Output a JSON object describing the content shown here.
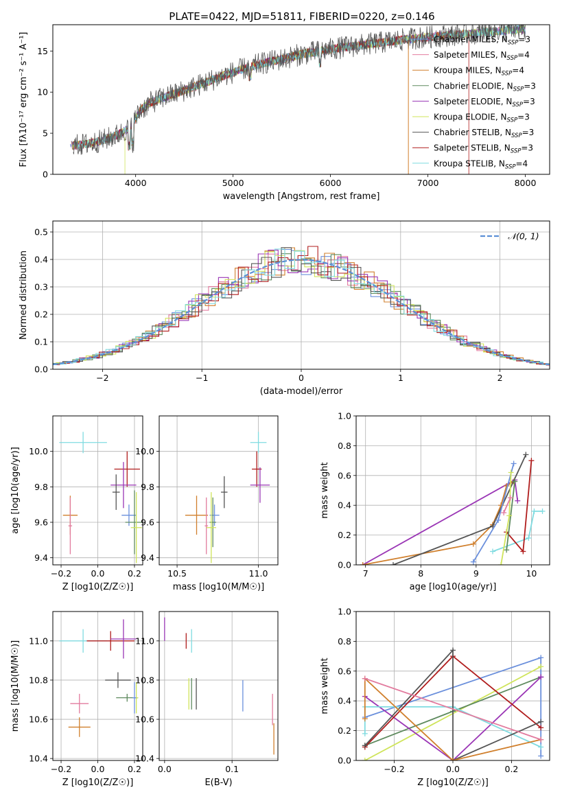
{
  "figure": {
    "title": "PLATE=0422, MJD=51811, FIBERID=0220, z=0.146"
  },
  "colors": {
    "Chabrier MILES": "#6a8fdc",
    "Salpeter MILES": "#e27b9e",
    "Kroupa MILES": "#d07f2c",
    "Chabrier ELODIE": "#5e8a5e",
    "Salpeter ELODIE": "#9a35b5",
    "Kroupa ELODIE": "#cfe45a",
    "Chabrier STELIB": "#545454",
    "Salpeter STELIB": "#b01c1c",
    "Kroupa STELIB": "#7fdbe0"
  },
  "chart_data": [
    {
      "id": "spectrum",
      "type": "line",
      "xlabel": "wavelength [Angstrom, rest frame]",
      "ylabel": "Flux [fλ10⁻¹⁷ erg cm⁻² s⁻¹ A⁻¹]",
      "xlim": [
        3150,
        8250
      ],
      "ylim": [
        0,
        18.2
      ],
      "xticks": [
        4000,
        5000,
        6000,
        7000,
        8000
      ],
      "yticks": [
        0,
        5,
        10,
        15
      ],
      "grid": false,
      "legend_position": "bottom-right",
      "series": [
        {
          "name": "Chabrier MILES, N_SSP=3",
          "color_key": "Chabrier MILES"
        },
        {
          "name": "Salpeter MILES, N_SSP=4",
          "color_key": "Salpeter MILES"
        },
        {
          "name": "Kroupa MILES, N_SSP=4",
          "color_key": "Kroupa MILES"
        },
        {
          "name": "Chabrier ELODIE, N_SSP=3",
          "color_key": "Chabrier ELODIE"
        },
        {
          "name": "Salpeter ELODIE, N_SSP=3",
          "color_key": "Salpeter ELODIE"
        },
        {
          "name": "Kroupa ELODIE, N_SSP=3",
          "color_key": "Kroupa ELODIE"
        },
        {
          "name": "Chabrier STELIB, N_SSP=3",
          "color_key": "Chabrier STELIB"
        },
        {
          "name": "Salpeter STELIB, N_SSP=3",
          "color_key": "Salpeter STELIB"
        },
        {
          "name": "Kroupa STELIB, N_SSP=4",
          "color_key": "Kroupa STELIB"
        }
      ],
      "continuum": {
        "x": [
          3350,
          3450,
          3550,
          3650,
          3750,
          3850,
          3950,
          4050,
          4150,
          4300,
          4500,
          4700,
          4900,
          5100,
          5300,
          5500,
          5700,
          5900,
          6100,
          6300,
          6500,
          6700,
          6900,
          7100,
          7300,
          7500,
          7700,
          7900,
          8000
        ],
        "y": [
          3.5,
          3.6,
          3.8,
          4.1,
          4.5,
          5.0,
          5.8,
          7.8,
          8.7,
          9.4,
          10.2,
          11.1,
          12.0,
          12.8,
          13.5,
          14.0,
          14.6,
          15.0,
          15.4,
          15.7,
          16.0,
          16.3,
          16.6,
          16.8,
          17.0,
          17.2,
          17.4,
          17.6,
          17.6
        ]
      }
    },
    {
      "id": "residuals",
      "type": "line",
      "xlabel": "(data-model)/error",
      "ylabel": "Normed distribution",
      "xlim": [
        -2.5,
        2.5
      ],
      "ylim": [
        0,
        0.54
      ],
      "xticks": [
        -2,
        -1,
        0,
        1,
        2
      ],
      "yticks": [
        0.0,
        0.1,
        0.2,
        0.3,
        0.4,
        0.5
      ],
      "grid": true,
      "legend": "𝒩(0, 1)",
      "legend_position": "top-right",
      "bin_width": 0.1,
      "bins_start": -2.5
    },
    {
      "id": "z-age",
      "type": "scatter",
      "xlabel": "Z [log10(Z/Z☉)]",
      "ylabel": "age  [log10(age/yr)]",
      "xlim": [
        -0.245,
        0.245
      ],
      "ylim": [
        9.36,
        10.2
      ],
      "xticks": [
        -0.2,
        0.0,
        0.2
      ],
      "yticks": [
        9.4,
        9.6,
        9.8,
        10.0
      ],
      "grid": true,
      "points": [
        {
          "key": "Kroupa STELIB",
          "x": -0.08,
          "y": 10.05,
          "xerr": 0.13,
          "yerr": 0.06
        },
        {
          "key": "Salpeter STELIB",
          "x": 0.16,
          "y": 9.9,
          "xerr": 0.07,
          "yerr": 0.1
        },
        {
          "key": "Salpeter ELODIE",
          "x": 0.14,
          "y": 9.81,
          "xerr": 0.07,
          "yerr": 0.13
        },
        {
          "key": "Chabrier STELIB",
          "x": 0.1,
          "y": 9.77,
          "xerr": 0.02,
          "yerr": 0.1
        },
        {
          "key": "Kroupa MILES",
          "x": -0.15,
          "y": 9.64,
          "xerr": 0.04,
          "yerr": 0.11
        },
        {
          "key": "Salpeter MILES",
          "x": -0.15,
          "y": 9.58,
          "xerr": 0.01,
          "yerr": 0.16
        },
        {
          "key": "Chabrier MILES",
          "x": 0.17,
          "y": 9.64,
          "xerr": 0.04,
          "yerr": 0.06
        },
        {
          "key": "Chabrier ELODIE",
          "x": 0.2,
          "y": 9.6,
          "xerr": 0.05,
          "yerr": 0.18
        },
        {
          "key": "Kroupa ELODIE",
          "x": 0.21,
          "y": 9.57,
          "xerr": 0.03,
          "yerr": 0.2
        }
      ]
    },
    {
      "id": "mass-age",
      "type": "scatter",
      "xlabel": "mass [log10(M/M☉)]",
      "ylabel": "",
      "xlim": [
        10.39,
        11.12
      ],
      "ylim": [
        9.36,
        10.2
      ],
      "xticks": [
        10.5,
        11.0
      ],
      "yticks": [
        9.4,
        9.6,
        9.8,
        10.0
      ],
      "grid": true,
      "points": [
        {
          "key": "Kroupa STELIB",
          "x": 11.0,
          "y": 10.05,
          "xerr": 0.05,
          "yerr": 0.06
        },
        {
          "key": "Salpeter STELIB",
          "x": 10.99,
          "y": 9.9,
          "xerr": 0.03,
          "yerr": 0.1
        },
        {
          "key": "Salpeter ELODIE",
          "x": 11.01,
          "y": 9.81,
          "xerr": 0.06,
          "yerr": 0.1
        },
        {
          "key": "Chabrier STELIB",
          "x": 10.79,
          "y": 9.77,
          "xerr": 0.02,
          "yerr": 0.09
        },
        {
          "key": "Kroupa MILES",
          "x": 10.62,
          "y": 9.64,
          "xerr": 0.07,
          "yerr": 0.11
        },
        {
          "key": "Salpeter MILES",
          "x": 10.68,
          "y": 9.58,
          "xerr": 0.01,
          "yerr": 0.16
        },
        {
          "key": "Chabrier MILES",
          "x": 10.73,
          "y": 9.64,
          "xerr": 0.03,
          "yerr": 0.06
        },
        {
          "key": "Chabrier ELODIE",
          "x": 10.72,
          "y": 9.6,
          "xerr": 0.02,
          "yerr": 0.14
        },
        {
          "key": "Kroupa ELODIE",
          "x": 10.71,
          "y": 9.57,
          "xerr": 0.03,
          "yerr": 0.2
        }
      ]
    },
    {
      "id": "age-weight",
      "type": "line",
      "xlabel": "age  [log10(age/yr)]",
      "ylabel": "mass weight",
      "xlim": [
        6.83,
        10.33
      ],
      "ylim": [
        0,
        1
      ],
      "xticks": [
        7,
        8,
        9,
        10
      ],
      "yticks": [
        0.0,
        0.2,
        0.4,
        0.6,
        0.8,
        1.0
      ],
      "grid": true,
      "series": [
        {
          "key": "Salpeter ELODIE",
          "x": [
            6.95,
            9.7,
            9.75
          ],
          "y": [
            0.0,
            0.57,
            0.43
          ]
        },
        {
          "key": "Kroupa MILES",
          "x": [
            6.95,
            8.95,
            9.3,
            9.45,
            9.55,
            9.68
          ],
          "y": [
            0.0,
            0.14,
            0.27,
            0.4,
            0.53,
            0.56
          ]
        },
        {
          "key": "Chabrier STELIB",
          "x": [
            7.5,
            9.3,
            9.9
          ],
          "y": [
            0.0,
            0.26,
            0.74
          ]
        },
        {
          "key": "Chabrier MILES",
          "x": [
            8.95,
            9.4,
            9.68
          ],
          "y": [
            0.02,
            0.3,
            0.68
          ]
        },
        {
          "key": "Kroupa STELIB",
          "x": [
            9.3,
            9.95,
            10.05,
            10.2
          ],
          "y": [
            0.09,
            0.18,
            0.36,
            0.36
          ]
        },
        {
          "key": "Salpeter STELIB",
          "x": [
            9.55,
            9.85,
            10.0
          ],
          "y": [
            0.22,
            0.09,
            0.7
          ]
        },
        {
          "key": "Chabrier ELODIE",
          "x": [
            9.55,
            9.7
          ],
          "y": [
            0.1,
            0.56
          ]
        },
        {
          "key": "Kroupa ELODIE",
          "x": [
            9.45,
            9.6,
            9.63
          ],
          "y": [
            0.0,
            0.33,
            0.62
          ]
        },
        {
          "key": "Salpeter MILES",
          "x": [
            9.5,
            9.62
          ],
          "y": [
            0.35,
            0.45
          ]
        }
      ]
    },
    {
      "id": "z-mass",
      "type": "scatter",
      "xlabel": "Z [log10(Z/Z☉)]",
      "ylabel": "mass [log10(M/M☉)]",
      "xlim": [
        -0.245,
        0.245
      ],
      "ylim": [
        10.39,
        11.15
      ],
      "xticks": [
        -0.2,
        0.0,
        0.2
      ],
      "yticks": [
        10.4,
        10.6,
        10.8,
        11.0
      ],
      "grid": true,
      "points": [
        {
          "key": "Kroupa STELIB",
          "x": -0.08,
          "y": 11.0,
          "xerr": 0.13,
          "yerr": 0.06
        },
        {
          "key": "Salpeter STELIB",
          "x": 0.07,
          "y": 11.0,
          "xerr": 0.13,
          "yerr": 0.05
        },
        {
          "key": "Salpeter ELODIE",
          "x": 0.14,
          "y": 11.01,
          "xerr": 0.07,
          "yerr": 0.1
        },
        {
          "key": "Chabrier STELIB",
          "x": 0.11,
          "y": 10.8,
          "xerr": 0.07,
          "yerr": 0.04
        },
        {
          "key": "Chabrier ELODIE",
          "x": 0.16,
          "y": 10.71,
          "xerr": 0.06,
          "yerr": 0.02
        },
        {
          "key": "Kroupa ELODIE",
          "x": 0.21,
          "y": 10.71,
          "xerr": 0.01,
          "yerr": 0.08
        },
        {
          "key": "Chabrier MILES",
          "x": 0.2,
          "y": 10.71,
          "xerr": 0.01,
          "yerr": 0.08
        },
        {
          "key": "Salpeter MILES",
          "x": -0.1,
          "y": 10.68,
          "xerr": 0.05,
          "yerr": 0.05
        },
        {
          "key": "Kroupa MILES",
          "x": -0.1,
          "y": 10.56,
          "xerr": 0.06,
          "yerr": 0.05
        }
      ]
    },
    {
      "id": "ebv-mass",
      "type": "scatter",
      "xlabel": "E(B-V)",
      "ylabel": "",
      "xlim": [
        -0.008,
        0.168
      ],
      "ylim": [
        10.39,
        11.15
      ],
      "xticks": [
        0.0,
        0.1
      ],
      "yticks": [
        10.4,
        10.6,
        10.8,
        11.0
      ],
      "grid": true,
      "points": [
        {
          "key": "Salpeter ELODIE",
          "x": 0.0,
          "y": 11.06,
          "xerr": 0.0,
          "yerr": 0.06
        },
        {
          "key": "Kroupa STELIB",
          "x": 0.04,
          "y": 11.0,
          "xerr": 0.0,
          "yerr": 0.06
        },
        {
          "key": "Salpeter STELIB",
          "x": 0.032,
          "y": 11.0,
          "xerr": 0.0,
          "yerr": 0.04
        },
        {
          "key": "Kroupa ELODIE",
          "x": 0.036,
          "y": 10.73,
          "xerr": 0.0,
          "yerr": 0.08
        },
        {
          "key": "Chabrier ELODIE",
          "x": 0.04,
          "y": 10.73,
          "xerr": 0.0,
          "yerr": 0.08
        },
        {
          "key": "Chabrier STELIB",
          "x": 0.047,
          "y": 10.73,
          "xerr": 0.0,
          "yerr": 0.08
        },
        {
          "key": "Chabrier MILES",
          "x": 0.116,
          "y": 10.72,
          "xerr": 0.0,
          "yerr": 0.08
        },
        {
          "key": "Salpeter MILES",
          "x": 0.16,
          "y": 10.65,
          "xerr": 0.0,
          "yerr": 0.08
        },
        {
          "key": "Kroupa MILES",
          "x": 0.162,
          "y": 10.5,
          "xerr": 0.0,
          "yerr": 0.08
        }
      ]
    },
    {
      "id": "z-weight",
      "type": "line",
      "xlabel": "Z [log10(Z/Z☉)]",
      "ylabel": "mass weight",
      "xlim": [
        -0.33,
        0.33
      ],
      "ylim": [
        0,
        1
      ],
      "xticks": [
        -0.2,
        0.0,
        0.2
      ],
      "yticks": [
        0.0,
        0.2,
        0.4,
        0.6,
        0.8,
        1.0
      ],
      "grid": true,
      "series": [
        {
          "key": "Chabrier MILES",
          "x": [
            -0.3,
            0.3,
            0.3
          ],
          "y": [
            0.29,
            0.69,
            0.03
          ]
        },
        {
          "key": "Kroupa ELODIE",
          "x": [
            -0.3,
            0.3
          ],
          "y": [
            0.0,
            0.63
          ]
        },
        {
          "key": "Chabrier ELODIE",
          "x": [
            -0.3,
            0.0,
            0.3
          ],
          "y": [
            0.1,
            0.33,
            0.56
          ]
        },
        {
          "key": "Salpeter ELODIE",
          "x": [
            -0.3,
            0.0,
            0.3,
            0.3
          ],
          "y": [
            0.43,
            0.0,
            0.56,
            0.56
          ]
        },
        {
          "key": "Kroupa STELIB",
          "x": [
            -0.3,
            -0.3,
            0.0,
            0.3
          ],
          "y": [
            0.18,
            0.36,
            0.36,
            0.09
          ]
        },
        {
          "key": "Salpeter STELIB",
          "x": [
            -0.3,
            0.0,
            0.3
          ],
          "y": [
            0.09,
            0.7,
            0.22
          ]
        },
        {
          "key": "Chabrier STELIB",
          "x": [
            -0.3,
            0.0,
            0.0,
            0.3
          ],
          "y": [
            0.1,
            0.74,
            0.0,
            0.26
          ]
        },
        {
          "key": "Kroupa MILES",
          "x": [
            -0.3,
            -0.3,
            0.0,
            0.3
          ],
          "y": [
            0.28,
            0.55,
            0.0,
            0.14
          ]
        },
        {
          "key": "Salpeter MILES",
          "x": [
            -0.3,
            0.3
          ],
          "y": [
            0.55,
            0.14
          ]
        }
      ]
    }
  ]
}
